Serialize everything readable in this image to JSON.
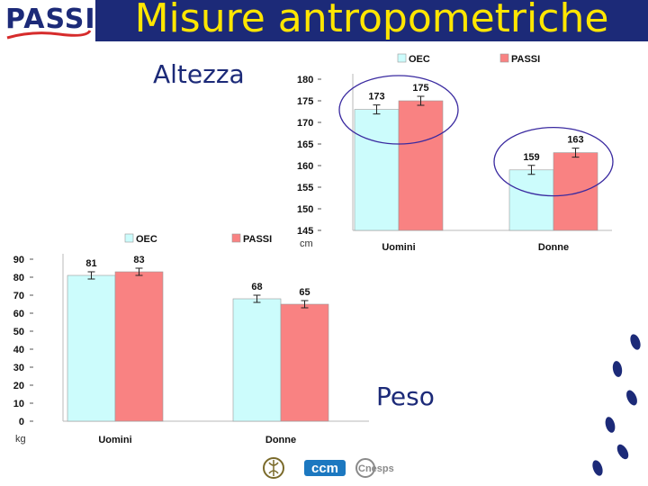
{
  "slide": {
    "title": "Misure antropometriche",
    "logo_text": "PASSI",
    "footer_logos": [
      "ccm",
      "Cnesps"
    ],
    "colors": {
      "title_bar": "#1c2a78",
      "title_text": "#ffe600",
      "oec": "#ccfcfc",
      "passi": "#f98282",
      "footprints": "#1c2a78"
    }
  },
  "chart_data": [
    {
      "type": "bar",
      "title": "Altezza",
      "unit_label": "cm",
      "categories": [
        "Uomini",
        "Donne"
      ],
      "series": [
        {
          "name": "OEC",
          "values": [
            173,
            159
          ],
          "color": "#ccfcfc"
        },
        {
          "name": "PASSI",
          "values": [
            175,
            163
          ],
          "color": "#f98282"
        }
      ],
      "ylim": [
        145,
        180
      ],
      "yticks": [
        145,
        150,
        155,
        160,
        165,
        170,
        175,
        180
      ],
      "error_bars": true,
      "legend_position": "top",
      "highlight_ellipses": true
    },
    {
      "type": "bar",
      "title": "Peso",
      "unit_label": "kg",
      "categories": [
        "Uomini",
        "Donne"
      ],
      "series": [
        {
          "name": "OEC",
          "values": [
            81,
            68
          ],
          "color": "#ccfcfc"
        },
        {
          "name": "PASSI",
          "values": [
            83,
            65
          ],
          "color": "#f98282"
        }
      ],
      "ylim": [
        0,
        90
      ],
      "yticks": [
        0,
        10,
        20,
        30,
        40,
        50,
        60,
        70,
        80,
        90
      ],
      "error_bars": true,
      "legend_position": "top"
    }
  ]
}
